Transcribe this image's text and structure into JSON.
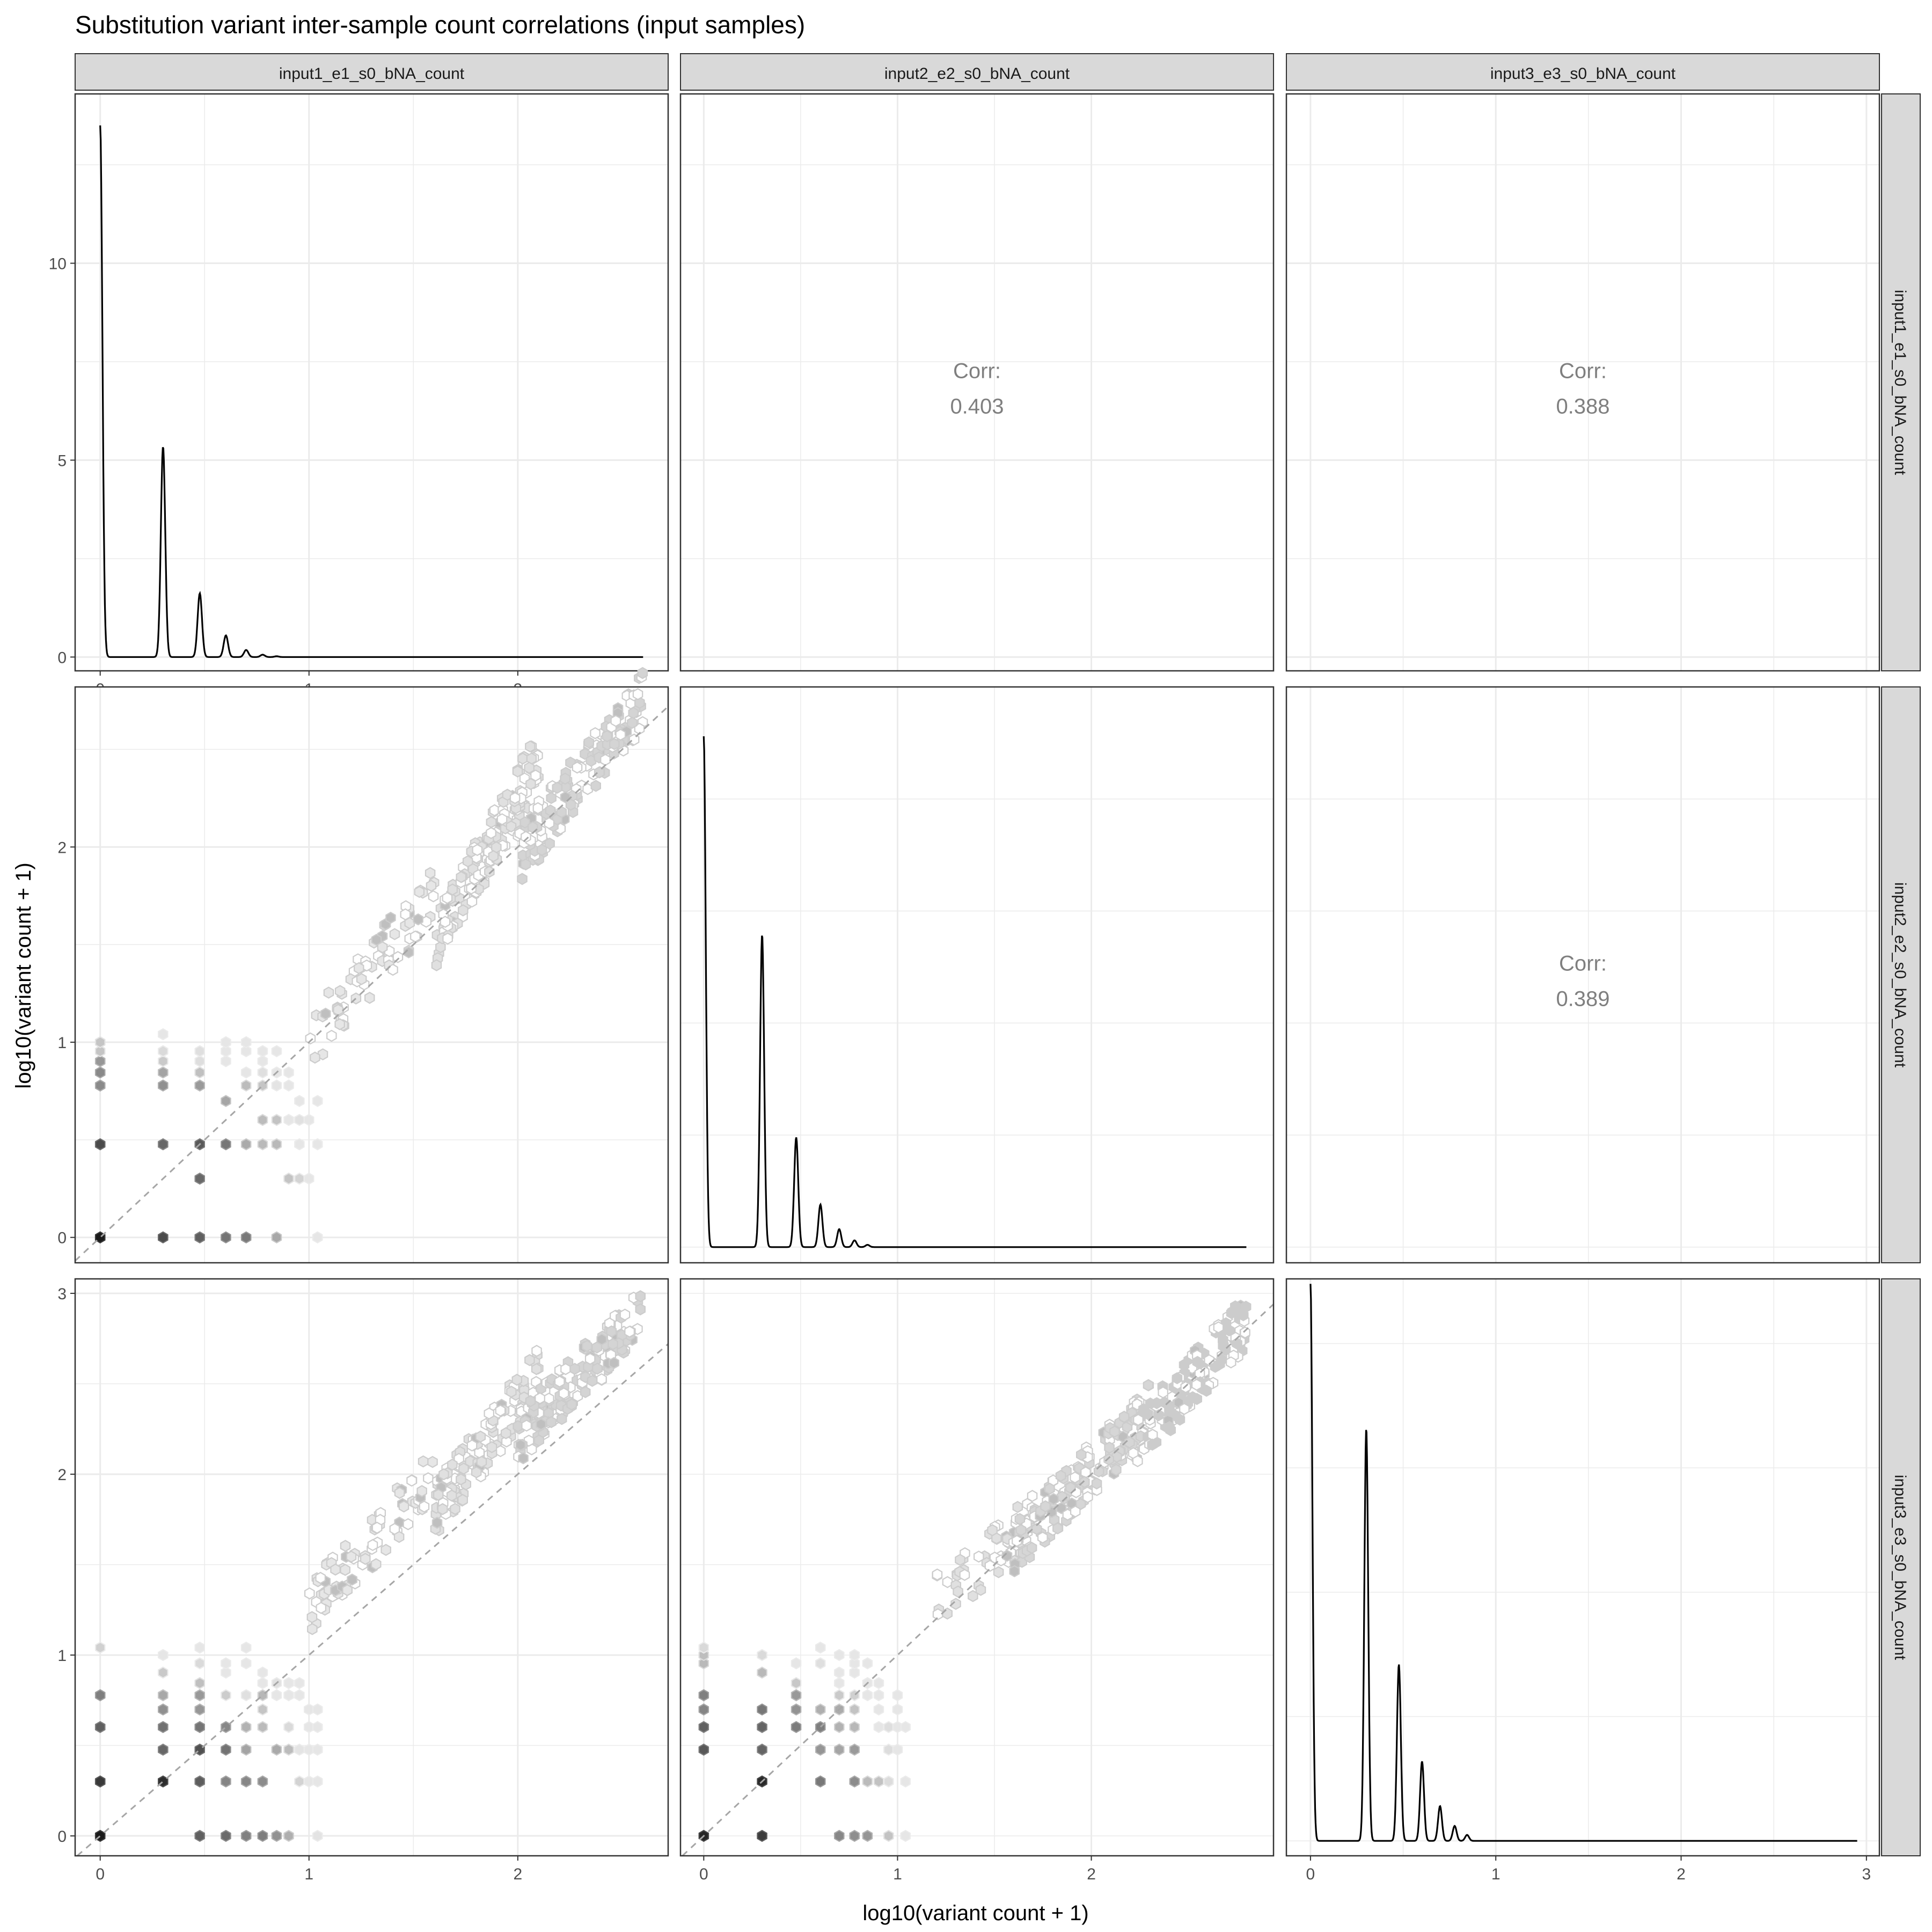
{
  "figure": {
    "title": "Substitution variant inter-sample count correlations (input samples)",
    "xlabel": "log10(variant count + 1)",
    "ylabel": "log10(variant count + 1)"
  },
  "samples": [
    "input1_e1_s0_bNA_count",
    "input2_e2_s0_bNA_count",
    "input3_e3_s0_bNA_count"
  ],
  "correlation_label": "Corr:",
  "chart_data": [
    {
      "panel": "row1-col1",
      "type": "line",
      "series_kind": "density",
      "sample": "input1_e1_s0_bNA_count",
      "xlim": [
        -0.12,
        2.72
      ],
      "ylim": [
        -0.35,
        14.3
      ],
      "xticks": [
        0,
        1,
        2
      ],
      "yticks": [
        0,
        5,
        10
      ],
      "xtick_labels": [
        "0",
        "1",
        "2"
      ],
      "ytick_labels": [
        "0",
        "5",
        "10"
      ],
      "x_max": 2.6,
      "peaks": [
        [
          0,
          13.5
        ],
        [
          0.301,
          5.35
        ],
        [
          0.477,
          1.62
        ],
        [
          0.602,
          0.55
        ],
        [
          0.699,
          0.18
        ],
        [
          0.778,
          0.06
        ],
        [
          0.845,
          0.02
        ]
      ],
      "grid": true
    },
    {
      "panel": "row1-col2",
      "type": "table",
      "label": "Corr:",
      "value": "0.403",
      "x_sample": "input2_e2_s0_bNA_count",
      "y_sample": "input1_e1_s0_bNA_count",
      "xlim": [
        -0.12,
        2.94
      ],
      "ylim": [
        -0.35,
        14.3
      ],
      "xticks": [
        0,
        1,
        2
      ],
      "yticks": [
        0,
        5,
        10
      ],
      "grid": true
    },
    {
      "panel": "row1-col3",
      "type": "table",
      "label": "Corr:",
      "value": "0.388",
      "x_sample": "input3_e3_s0_bNA_count",
      "y_sample": "input1_e1_s0_bNA_count",
      "xlim": [
        -0.13,
        3.07
      ],
      "ylim": [
        -0.35,
        14.3
      ],
      "xticks": [
        0,
        1,
        2,
        3
      ],
      "yticks": [
        0,
        5,
        10
      ],
      "grid": true
    },
    {
      "panel": "row2-col1",
      "type": "scatter",
      "series_kind": "hexbin",
      "x_sample": "input1_e1_s0_bNA_count",
      "y_sample": "input2_e2_s0_bNA_count",
      "xlim": [
        -0.12,
        2.72
      ],
      "ylim": [
        -0.13,
        2.82
      ],
      "xticks": [
        0,
        1,
        2
      ],
      "yticks": [
        0,
        1,
        2
      ],
      "ytick_labels": [
        "0",
        "1",
        "2"
      ],
      "identity_line": true,
      "dense_clusters": [
        {
          "x": [
            1.0,
            1.6
          ],
          "y": [
            1.0,
            1.75
          ],
          "count": 70,
          "shade": 0.9
        },
        {
          "x": [
            1.6,
            2.1
          ],
          "y": [
            1.5,
            2.45
          ],
          "count": 150,
          "shade": 0.88
        },
        {
          "x": [
            2.0,
            2.6
          ],
          "y": [
            1.95,
            2.75
          ],
          "count": 160,
          "shade": 0.83
        }
      ],
      "grid": true
    },
    {
      "panel": "row2-col2",
      "type": "line",
      "series_kind": "density",
      "sample": "input2_e2_s0_bNA_count",
      "xlim": [
        -0.12,
        2.94
      ],
      "ylim": [
        -0.35,
        12.5
      ],
      "xticks": [
        0,
        1,
        2
      ],
      "x_max": 2.8,
      "peaks": [
        [
          0,
          11.4
        ],
        [
          0.301,
          6.98
        ],
        [
          0.477,
          2.45
        ],
        [
          0.602,
          0.95
        ],
        [
          0.699,
          0.4
        ],
        [
          0.778,
          0.15
        ],
        [
          0.845,
          0.05
        ]
      ],
      "grid": true
    },
    {
      "panel": "row2-col3",
      "type": "table",
      "label": "Corr:",
      "value": "0.389",
      "x_sample": "input3_e3_s0_bNA_count",
      "y_sample": "input2_e2_s0_bNA_count",
      "xlim": [
        -0.13,
        3.07
      ],
      "ylim": [
        -0.35,
        12.5
      ],
      "xticks": [
        0,
        1,
        2,
        3
      ],
      "grid": true
    },
    {
      "panel": "row3-col1",
      "type": "scatter",
      "series_kind": "hexbin",
      "x_sample": "input1_e1_s0_bNA_count",
      "y_sample": "input3_e3_s0_bNA_count",
      "xlim": [
        -0.12,
        2.72
      ],
      "ylim": [
        -0.11,
        3.08
      ],
      "xticks": [
        0,
        1,
        2
      ],
      "yticks": [
        0,
        1,
        2,
        3
      ],
      "xtick_labels": [
        "0",
        "1",
        "2"
      ],
      "ytick_labels": [
        "0",
        "1",
        "2",
        "3"
      ],
      "identity_line": true,
      "dense_clusters": [
        {
          "x": [
            1.0,
            1.6
          ],
          "y": [
            1.25,
            2.0
          ],
          "count": 80,
          "shade": 0.9
        },
        {
          "x": [
            1.6,
            2.1
          ],
          "y": [
            1.8,
            2.55
          ],
          "count": 150,
          "shade": 0.88
        },
        {
          "x": [
            2.0,
            2.6
          ],
          "y": [
            2.2,
            2.9
          ],
          "count": 160,
          "shade": 0.83
        }
      ],
      "grid": true
    },
    {
      "panel": "row3-col2",
      "type": "scatter",
      "series_kind": "hexbin",
      "x_sample": "input2_e2_s0_bNA_count",
      "y_sample": "input3_e3_s0_bNA_count",
      "xlim": [
        -0.12,
        2.94
      ],
      "ylim": [
        -0.11,
        3.08
      ],
      "xticks": [
        0,
        1,
        2
      ],
      "xtick_labels": [
        "0",
        "1",
        "2"
      ],
      "identity_line": true,
      "dense_clusters": [
        {
          "x": [
            1.2,
            1.7
          ],
          "y": [
            1.3,
            1.75
          ],
          "count": 60,
          "shade": 0.88
        },
        {
          "x": [
            1.6,
            2.3
          ],
          "y": [
            1.6,
            2.35
          ],
          "count": 170,
          "shade": 0.84
        },
        {
          "x": [
            2.2,
            2.8
          ],
          "y": [
            2.15,
            2.85
          ],
          "count": 150,
          "shade": 0.8
        }
      ],
      "grid": true
    },
    {
      "panel": "row3-col3",
      "type": "line",
      "series_kind": "density",
      "sample": "input3_e3_s0_bNA_count",
      "xlim": [
        -0.13,
        3.07
      ],
      "ylim": [
        -0.3,
        11.3
      ],
      "xticks": [
        0,
        1,
        2,
        3
      ],
      "xtick_labels": [
        "0",
        "1",
        "2",
        "3"
      ],
      "x_max": 2.95,
      "peaks": [
        [
          0,
          11.2
        ],
        [
          0.301,
          8.3
        ],
        [
          0.477,
          3.55
        ],
        [
          0.602,
          1.6
        ],
        [
          0.699,
          0.7
        ],
        [
          0.778,
          0.3
        ],
        [
          0.845,
          0.12
        ]
      ],
      "grid": true
    }
  ]
}
